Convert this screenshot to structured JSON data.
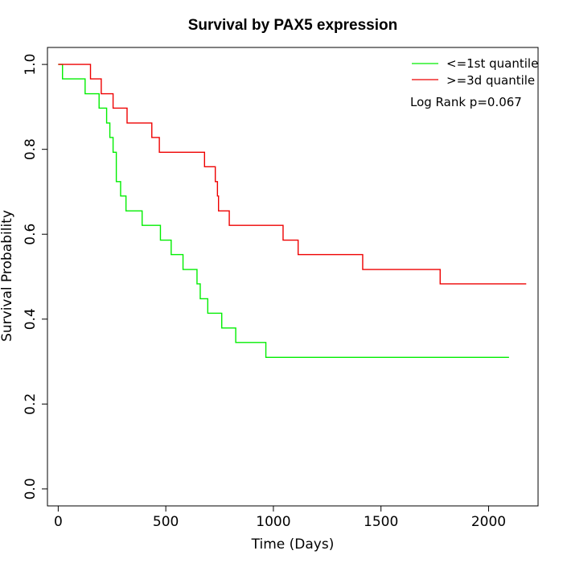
{
  "chart_data": {
    "type": "line",
    "title": "Survival by PAX5 expression",
    "xlabel": "Time (Days)",
    "ylabel": "Survival Probability",
    "xlim": [
      -50,
      2230
    ],
    "ylim": [
      -0.04,
      1.04
    ],
    "x_ticks": [
      0,
      500,
      1000,
      1500,
      2000
    ],
    "y_ticks": [
      0.0,
      0.2,
      0.4,
      0.6,
      0.8,
      1.0
    ],
    "x_tick_labels": [
      "0",
      "500",
      "1000",
      "1500",
      "2000"
    ],
    "y_tick_labels": [
      "0.0",
      "0.2",
      "0.4",
      "0.6",
      "0.8",
      "1.0"
    ],
    "legend_position": "top-right",
    "annotation": "Log Rank p=0.067",
    "series": [
      {
        "name": "<=1st quantile",
        "color": "#00ee00",
        "step": true,
        "x": [
          0,
          20,
          125,
          190,
          225,
          240,
          255,
          270,
          290,
          315,
          330,
          390,
          475,
          525,
          580,
          645,
          660,
          695,
          760,
          825,
          965,
          2095
        ],
        "y": [
          1.0,
          0.966,
          0.931,
          0.897,
          0.862,
          0.828,
          0.793,
          0.724,
          0.69,
          0.655,
          0.655,
          0.621,
          0.586,
          0.552,
          0.517,
          0.483,
          0.448,
          0.414,
          0.379,
          0.345,
          0.31,
          0.31
        ]
      },
      {
        "name": ">=3d quantile",
        "color": "#ee0000",
        "step": true,
        "x": [
          0,
          150,
          200,
          255,
          320,
          435,
          470,
          680,
          730,
          740,
          745,
          795,
          1045,
          1115,
          1415,
          1775,
          2175
        ],
        "y": [
          1.0,
          0.966,
          0.931,
          0.897,
          0.862,
          0.828,
          0.793,
          0.759,
          0.724,
          0.69,
          0.655,
          0.621,
          0.586,
          0.552,
          0.517,
          0.483,
          0.483
        ]
      }
    ]
  }
}
